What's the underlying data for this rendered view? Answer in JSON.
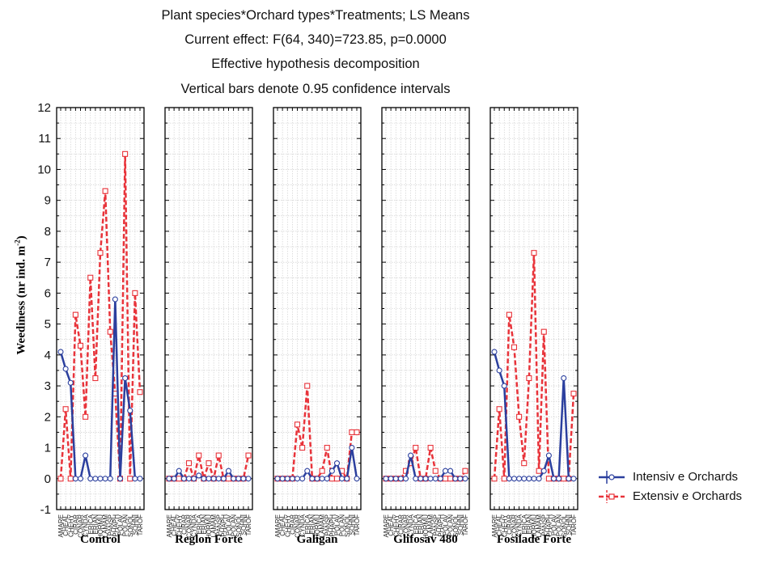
{
  "title_lines": [
    "Plant species*Orchard types*Treatments; LS Means",
    "Current effect: F(64, 340)=723.85, p=0.0000",
    "Effective hypothesis decomposition",
    "Vertical bars denote 0.95 confidence intervals"
  ],
  "ylabel_main": "Weediness (nr ind. m",
  "ylabel_sup": "-2",
  "ylabel_end": ")",
  "legend": [
    {
      "label": "Intensiv e Orchards",
      "color": "#2b3f9e",
      "dash": false
    },
    {
      "label": "Extensiv e Orchards",
      "color": "#e8333a",
      "dash": true
    }
  ],
  "chart_data": {
    "type": "line",
    "ylim": [
      -1,
      12
    ],
    "yticks": [
      "-1",
      "0",
      "1",
      "2",
      "3",
      "4",
      "5",
      "6",
      "7",
      "8",
      "9",
      "10",
      "11",
      "12"
    ],
    "grid": true,
    "categories": [
      "AMARE",
      "CHEAL",
      "CHEHY",
      "CIRAR",
      "CONAR",
      "CYNDA",
      "ERICA",
      "ERIAN",
      "HORMU",
      "LAMAM",
      "PANSP",
      "PHAPH",
      "POLAV",
      "POLAN",
      "SONOL",
      "SOHNI",
      "TAROF"
    ],
    "panels": [
      {
        "name": "Control",
        "series": [
          {
            "name": "Intensive Orchards",
            "values": [
              4.1,
              3.55,
              3.1,
              0,
              0,
              0.75,
              0,
              0,
              0,
              0,
              0,
              5.8,
              0,
              3.25,
              2.2,
              0,
              0
            ]
          },
          {
            "name": "Extensive Orchards",
            "values": [
              0,
              2.25,
              0,
              5.3,
              4.3,
              2.0,
              6.5,
              3.25,
              7.3,
              9.3,
              4.75,
              2.75,
              0,
              10.5,
              0,
              6.0,
              2.8
            ]
          }
        ]
      },
      {
        "name": "Reglon Forte",
        "series": [
          {
            "name": "Intensive Orchards",
            "values": [
              0,
              0,
              0.25,
              0,
              0,
              0,
              0.1,
              0,
              0,
              0,
              0,
              0,
              0.25,
              0,
              0,
              0,
              0
            ]
          },
          {
            "name": "Extensive Orchards",
            "values": [
              0,
              0,
              0,
              0,
              0.5,
              0,
              0.75,
              0,
              0.5,
              0,
              0.75,
              0,
              0,
              0,
              0,
              0,
              0.75
            ]
          }
        ]
      },
      {
        "name": "Galigan",
        "series": [
          {
            "name": "Intensive Orchards",
            "values": [
              0,
              0,
              0,
              0,
              0,
              0,
              0.25,
              0,
              0,
              0,
              0,
              0.25,
              0.5,
              0,
              0,
              1.0,
              0
            ]
          },
          {
            "name": "Extensive Orchards",
            "values": [
              0,
              0,
              0,
              0,
              1.75,
              1.0,
              3.0,
              0,
              0,
              0.25,
              1.0,
              0,
              0,
              0.25,
              0,
              1.5,
              1.5
            ]
          }
        ]
      },
      {
        "name": "Glifosav 480",
        "series": [
          {
            "name": "Intensive Orchards",
            "values": [
              0,
              0,
              0,
              0,
              0,
              0.75,
              0,
              0,
              0,
              0,
              0,
              0,
              0.25,
              0.25,
              0,
              0,
              0
            ]
          },
          {
            "name": "Extensive Orchards",
            "values": [
              0,
              0,
              0,
              0,
              0.25,
              0.5,
              1.0,
              0,
              0,
              1.0,
              0.25,
              0,
              0,
              0,
              0,
              0,
              0.25
            ]
          }
        ]
      },
      {
        "name": "Fosilade Forte",
        "series": [
          {
            "name": "Intensive Orchards",
            "values": [
              4.1,
              3.5,
              3.0,
              0,
              0,
              0,
              0,
              0,
              0,
              0,
              0.25,
              0.75,
              0,
              0,
              3.25,
              0,
              0
            ]
          },
          {
            "name": "Extensive Orchards",
            "values": [
              0,
              2.25,
              0,
              5.3,
              4.25,
              2.0,
              0.5,
              3.25,
              7.3,
              0.25,
              4.75,
              0,
              0,
              0,
              0,
              0,
              2.75
            ]
          }
        ]
      }
    ]
  }
}
